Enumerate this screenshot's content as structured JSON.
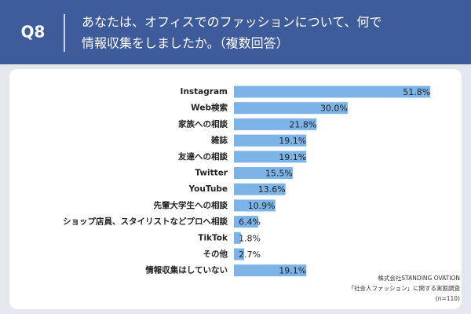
{
  "header": {
    "question": "Q8",
    "title": [
      "あなたは、オフィスでのファッションについて、何で",
      "情報収集をしましたか。（複数回答）"
    ]
  },
  "chart_data": {
    "type": "bar",
    "orientation": "horizontal",
    "color": "#7cb4e8",
    "categories": [
      "Instagram",
      "Web検索",
      "家族への相談",
      "雑誌",
      "友達への相談",
      "Twitter",
      "YouTube",
      "先輩大学生への相談",
      "ショップ店員、スタイリストなどプロへ相談",
      "TikTok",
      "その他",
      "情報収集はしていない"
    ],
    "values": [
      51.8,
      30.0,
      21.8,
      19.1,
      19.1,
      15.5,
      13.6,
      10.9,
      6.4,
      1.8,
      2.7,
      19.1
    ],
    "value_labels": [
      "51.8%",
      "30.0%",
      "21.8%",
      "19.1%",
      "19.1%",
      "15.5%",
      "13.6%",
      "10.9%",
      "6.4%",
      "1.8%",
      "2.7%",
      "19.1%"
    ]
  },
  "source": [
    "株式会社STANDING OVATION",
    "「社会人ファッション」に関する実態調査",
    "(n=110)"
  ]
}
